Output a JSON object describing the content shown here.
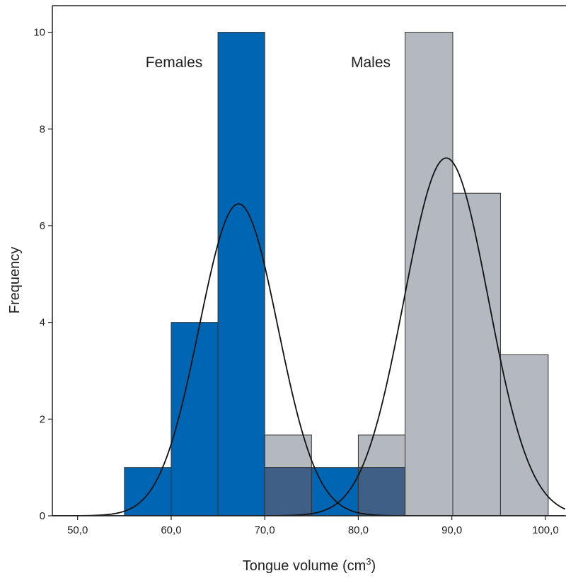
{
  "chart_data": {
    "type": "bar",
    "xlabel": "Tongue volume (cm",
    "xlabel_sup": "3",
    "ylabel": "Frequency",
    "xlim": [
      47.3,
      102.2
    ],
    "ylim": [
      0,
      10.55
    ],
    "x_ticks": [
      {
        "value": 50,
        "label": "50,0"
      },
      {
        "value": 60,
        "label": "60,0"
      },
      {
        "value": 70,
        "label": "70,0"
      },
      {
        "value": 80,
        "label": "80,0"
      },
      {
        "value": 90,
        "label": "90,0"
      },
      {
        "value": 100,
        "label": "100,0"
      }
    ],
    "y_ticks": [
      {
        "value": 0,
        "label": "0"
      },
      {
        "value": 2,
        "label": "2"
      },
      {
        "value": 4,
        "label": "4"
      },
      {
        "value": 6,
        "label": "6"
      },
      {
        "value": 8,
        "label": "8"
      },
      {
        "value": 10,
        "label": "10"
      }
    ],
    "series": [
      {
        "name": "Males",
        "color": "#b4b9c0",
        "bins": [
          {
            "x0": 70,
            "x1": 75,
            "value": 1.67
          },
          {
            "x0": 80,
            "x1": 85,
            "value": 1.67
          },
          {
            "x0": 85,
            "x1": 90.1,
            "value": 10
          },
          {
            "x0": 90.1,
            "x1": 95.2,
            "value": 6.67
          },
          {
            "x0": 95.2,
            "x1": 100.3,
            "value": 3.33
          }
        ],
        "normal_curve": {
          "mean": 89.4,
          "sd": 4.5,
          "peak": 7.4
        }
      },
      {
        "name": "Females",
        "color": "#0066b3",
        "bins": [
          {
            "x0": 55,
            "x1": 60,
            "value": 1
          },
          {
            "x0": 60,
            "x1": 65,
            "value": 4
          },
          {
            "x0": 65,
            "x1": 70,
            "value": 10
          },
          {
            "x0": 70,
            "x1": 75,
            "value": 1
          },
          {
            "x0": 75,
            "x1": 80,
            "value": 1
          },
          {
            "x0": 80,
            "x1": 85,
            "value": 1
          }
        ],
        "normal_curve": {
          "mean": 67.2,
          "sd": 4.2,
          "peak": 6.45
        }
      }
    ],
    "overlap_color": "#3f5f87"
  }
}
